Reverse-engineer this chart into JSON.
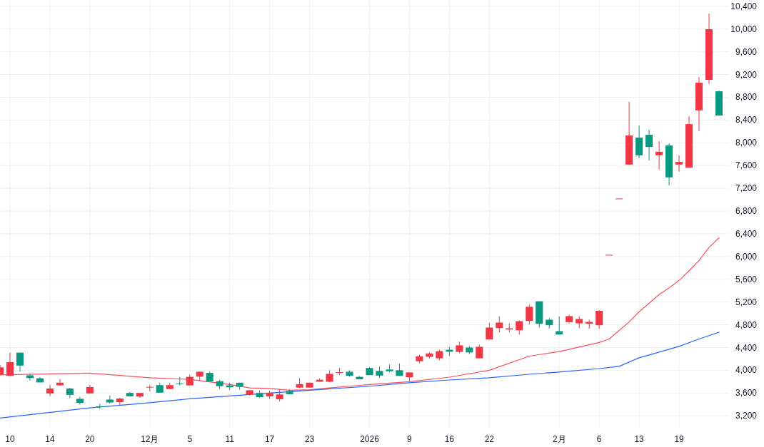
{
  "chart_data": {
    "type": "candlestick",
    "categories": [
      null,
      "10",
      null,
      null,
      null,
      "14",
      null,
      null,
      null,
      "20",
      null,
      null,
      null,
      null,
      null,
      "12月",
      null,
      null,
      null,
      "5",
      null,
      null,
      null,
      "11",
      null,
      null,
      null,
      "17",
      null,
      null,
      null,
      "23",
      null,
      null,
      null,
      null,
      null,
      "2026",
      null,
      null,
      null,
      "9",
      null,
      null,
      null,
      "16",
      null,
      null,
      null,
      "22",
      null,
      null,
      null,
      null,
      null,
      null,
      "2月",
      null,
      null,
      null,
      "6",
      null,
      null,
      null,
      "13",
      null,
      null,
      null,
      "19",
      null,
      null,
      null,
      null
    ],
    "ohlc": [
      [
        3924,
        4095,
        3924,
        4052
      ],
      [
        3902,
        4310,
        3902,
        4143
      ],
      [
        4310,
        4310,
        3975,
        4083
      ],
      [
        3911,
        3945,
        3817,
        3864
      ],
      [
        3859,
        3881,
        3787,
        3787
      ],
      [
        3593,
        3739,
        3551,
        3679
      ],
      [
        3735,
        3847,
        3735,
        3782
      ],
      [
        3679,
        3692,
        3512,
        3568
      ],
      [
        3499,
        3533,
        3400,
        3426
      ],
      [
        3593,
        3744,
        3593,
        3705
      ],
      [
        3366,
        3413,
        3323,
        3357
      ],
      [
        3486,
        3559,
        3413,
        3435
      ],
      [
        3439,
        3520,
        3383,
        3503
      ],
      [
        3602,
        3619,
        3538,
        3542
      ],
      [
        3538,
        3602,
        3516,
        3602
      ],
      [
        3701,
        3744,
        3632,
        3709
      ],
      [
        3739,
        3778,
        3606,
        3606
      ],
      [
        3671,
        3778,
        3671,
        3739
      ],
      [
        3770,
        3881,
        3731,
        3761
      ],
      [
        3735,
        3924,
        3735,
        3885
      ],
      [
        3889,
        3975,
        3817,
        3975
      ],
      [
        3954,
        3980,
        3804,
        3804
      ],
      [
        3808,
        3834,
        3671,
        3722
      ],
      [
        3735,
        3782,
        3654,
        3701
      ],
      [
        3782,
        3782,
        3658,
        3709
      ],
      [
        3572,
        3649,
        3551,
        3649
      ],
      [
        3602,
        3645,
        3512,
        3529
      ],
      [
        3542,
        3641,
        3499,
        3606
      ],
      [
        3490,
        3658,
        3452,
        3576
      ],
      [
        3636,
        3666,
        3581,
        3581
      ],
      [
        3696,
        3859,
        3684,
        3757
      ],
      [
        3696,
        3782,
        3696,
        3782
      ],
      [
        3799,
        3859,
        3799,
        3834
      ],
      [
        3799,
        4001,
        3786,
        3937
      ],
      [
        3958,
        4040,
        3915,
        3967
      ],
      [
        3975,
        4001,
        3885,
        3902
      ],
      [
        3885,
        3898,
        3842,
        3842
      ],
      [
        4040,
        4053,
        3915,
        3915
      ],
      [
        3988,
        4066,
        3864,
        3907
      ],
      [
        4014,
        4104,
        3967,
        3984
      ],
      [
        4001,
        4121,
        3902,
        3902
      ],
      [
        3877,
        3962,
        3808,
        3962
      ],
      [
        4160,
        4271,
        4121,
        4246
      ],
      [
        4237,
        4314,
        4211,
        4297
      ],
      [
        4211,
        4361,
        4173,
        4336
      ],
      [
        4361,
        4409,
        4250,
        4327
      ],
      [
        4323,
        4503,
        4301,
        4439
      ],
      [
        4400,
        4426,
        4284,
        4314
      ],
      [
        4211,
        4451,
        4211,
        4413
      ],
      [
        4541,
        4835,
        4541,
        4751
      ],
      [
        4742,
        4952,
        4667,
        4839
      ],
      [
        4717,
        4826,
        4667,
        4738
      ],
      [
        4704,
        4877,
        4625,
        4864
      ],
      [
        4868,
        5150,
        4805,
        5116
      ],
      [
        5213,
        5213,
        4751,
        4818
      ],
      [
        4889,
        4914,
        4730,
        4793
      ],
      [
        4688,
        4948,
        4629,
        4629
      ],
      [
        4847,
        4977,
        4822,
        4952
      ],
      [
        4826,
        4952,
        4738,
        4902
      ],
      [
        4818,
        4889,
        4730,
        4851
      ],
      [
        4793,
        5057,
        4730,
        5045
      ],
      [
        6030,
        6030,
        6030,
        6030
      ],
      [
        7020,
        7020,
        7020,
        7020
      ],
      [
        7617,
        8721,
        7617,
        8128
      ],
      [
        8090,
        8303,
        7730,
        7780
      ],
      [
        8140,
        8228,
        7689,
        7927
      ],
      [
        7780,
        8028,
        7530,
        7843
      ],
      [
        7952,
        7990,
        7250,
        7392
      ],
      [
        7617,
        7777,
        7492,
        7664
      ],
      [
        7563,
        8466,
        7563,
        8328
      ],
      [
        8570,
        9156,
        8203,
        9056
      ],
      [
        9106,
        10272,
        9035,
        9996
      ],
      [
        8905,
        8918,
        8479,
        8479
      ]
    ],
    "colors": [
      "#f23645",
      "#f23645",
      "#089981",
      "#089981",
      "#089981",
      "#f23645",
      "#f23645",
      "#089981",
      "#089981",
      "#f23645",
      "#089981",
      "#089981",
      "#f23645",
      "#089981",
      "#f23645",
      "#f23645",
      "#089981",
      "#f23645",
      "#089981",
      "#f23645",
      "#f23645",
      "#089981",
      "#089981",
      "#089981",
      "#089981",
      "#f23645",
      "#089981",
      "#f23645",
      "#f23645",
      "#089981",
      "#f23645",
      "#f23645",
      "#f23645",
      "#f23645",
      "#f23645",
      "#089981",
      "#089981",
      "#089981",
      "#089981",
      "#089981",
      "#089981",
      "#f23645",
      "#f23645",
      "#f23645",
      "#f23645",
      "#089981",
      "#f23645",
      "#089981",
      "#f23645",
      "#f23645",
      "#f23645",
      "#f23645",
      "#f23645",
      "#f23645",
      "#089981",
      "#089981",
      "#089981",
      "#f23645",
      "#f23645",
      "#f23645",
      "#f23645",
      "#f23645",
      "#f23645",
      "#f23645",
      "#089981",
      "#089981",
      "#f23645",
      "#089981",
      "#f23645",
      "#f23645",
      "#f23645",
      "#f23645",
      "#089981"
    ],
    "series": [
      {
        "type": "line",
        "color": "#f7525f",
        "values": [
          3920,
          null,
          null,
          null,
          null,
          null,
          null,
          null,
          null,
          3950,
          null,
          null,
          null,
          null,
          null,
          3870,
          null,
          null,
          null,
          3840,
          null,
          null,
          null,
          3750,
          null,
          3690,
          null,
          3680,
          null,
          3650,
          null,
          3660,
          null,
          3690,
          null,
          null,
          null,
          3750,
          null,
          null,
          null,
          3800,
          null,
          null,
          null,
          3880,
          null,
          null,
          null,
          4000,
          null,
          null,
          null,
          4250,
          null,
          null,
          4330,
          null,
          null,
          null,
          4490,
          4550,
          4700,
          4850,
          5030,
          5180,
          5330,
          5450,
          5580,
          5750,
          5930,
          6160,
          6330
        ]
      },
      {
        "type": "line",
        "color": "#2962ff",
        "values": [
          3160,
          null,
          null,
          null,
          null,
          null,
          null,
          null,
          null,
          3340,
          null,
          null,
          null,
          null,
          null,
          3430,
          null,
          null,
          null,
          3500,
          null,
          null,
          null,
          3550,
          null,
          null,
          null,
          null,
          null,
          null,
          null,
          3650,
          null,
          null,
          null,
          null,
          null,
          3720,
          null,
          null,
          null,
          3780,
          null,
          null,
          null,
          3830,
          null,
          null,
          null,
          3870,
          null,
          null,
          null,
          3930,
          null,
          null,
          3970,
          null,
          null,
          null,
          4030,
          null,
          4070,
          null,
          4220,
          null,
          4320,
          null,
          4420,
          null,
          4550,
          null,
          4670
        ]
      }
    ],
    "ylim": [
      2990,
      10510
    ],
    "yticks": [
      {
        "value": 3200,
        "label": "3,200"
      },
      {
        "value": 3600,
        "label": "3,600"
      },
      {
        "value": 4000,
        "label": "4,000"
      },
      {
        "value": 4400,
        "label": "4,400"
      },
      {
        "value": 4800,
        "label": "4,800"
      },
      {
        "value": 5200,
        "label": "5,200"
      },
      {
        "value": 5600,
        "label": "5,600"
      },
      {
        "value": 6000,
        "label": "6,000"
      },
      {
        "value": 6400,
        "label": "6,400"
      },
      {
        "value": 6800,
        "label": "6,800"
      },
      {
        "value": 7200,
        "label": "7,200"
      },
      {
        "value": 7600,
        "label": "7,600"
      },
      {
        "value": 8000,
        "label": "8,000"
      },
      {
        "value": 8400,
        "label": "8,400"
      },
      {
        "value": 8800,
        "label": "8,800"
      },
      {
        "value": 9200,
        "label": "9,200"
      },
      {
        "value": 9600,
        "label": "9,600"
      },
      {
        "value": 10000,
        "label": "10,000"
      },
      {
        "value": 10400,
        "label": "10,400"
      }
    ],
    "grid": true
  }
}
